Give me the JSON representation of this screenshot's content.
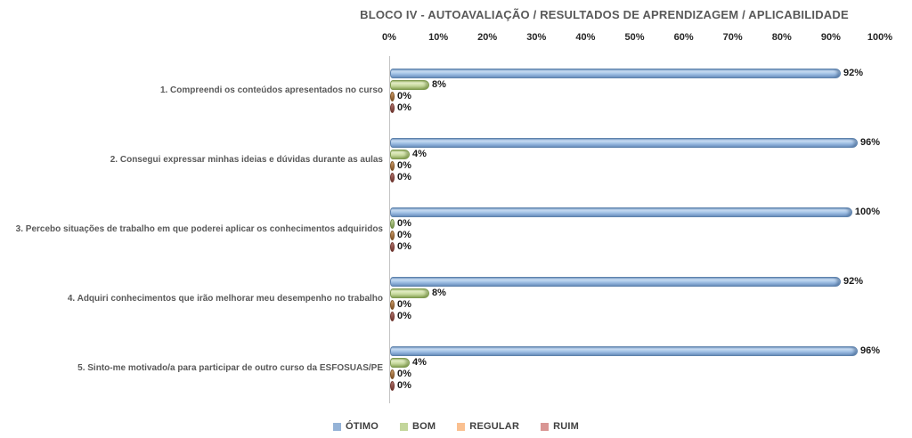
{
  "chart_data": {
    "type": "bar",
    "orientation": "horizontal",
    "title": "BLOCO IV - AUTOAVALIAÇÃO / RESULTADOS DE APRENDIZAGEM / APLICABILIDADE",
    "categories": [
      "1. Compreendi os conteúdos apresentados no curso",
      "2. Consegui expressar minhas ideias e dúvidas durante as aulas",
      "3. Percebo situações de trabalho em que poderei aplicar os conhecimentos adquiridos",
      "4. Adquiri conhecimentos que irão melhorar meu desempenho no trabalho",
      "5. Sinto-me motivado/a para participar de outro curso da ESFOSUAS/PE"
    ],
    "series": [
      {
        "name": "ÓTIMO",
        "color": "#95B3D7",
        "values": [
          92,
          96,
          100,
          92,
          96
        ]
      },
      {
        "name": "BOM",
        "color": "#C3D69B",
        "values": [
          8,
          4,
          0,
          8,
          4
        ]
      },
      {
        "name": "REGULAR",
        "color": "#FAC090",
        "values": [
          0,
          0,
          0,
          0,
          0
        ]
      },
      {
        "name": "RUIM",
        "color": "#D99694",
        "values": [
          0,
          0,
          0,
          0,
          0
        ]
      }
    ],
    "value_suffix": "%",
    "x_ticks": [
      "0%",
      "10%",
      "20%",
      "30%",
      "40%",
      "50%",
      "60%",
      "70%",
      "80%",
      "90%",
      "100%"
    ],
    "xlim": [
      0,
      100
    ],
    "grid": false,
    "legend_position": "bottom",
    "axis_labels_position": "top"
  }
}
